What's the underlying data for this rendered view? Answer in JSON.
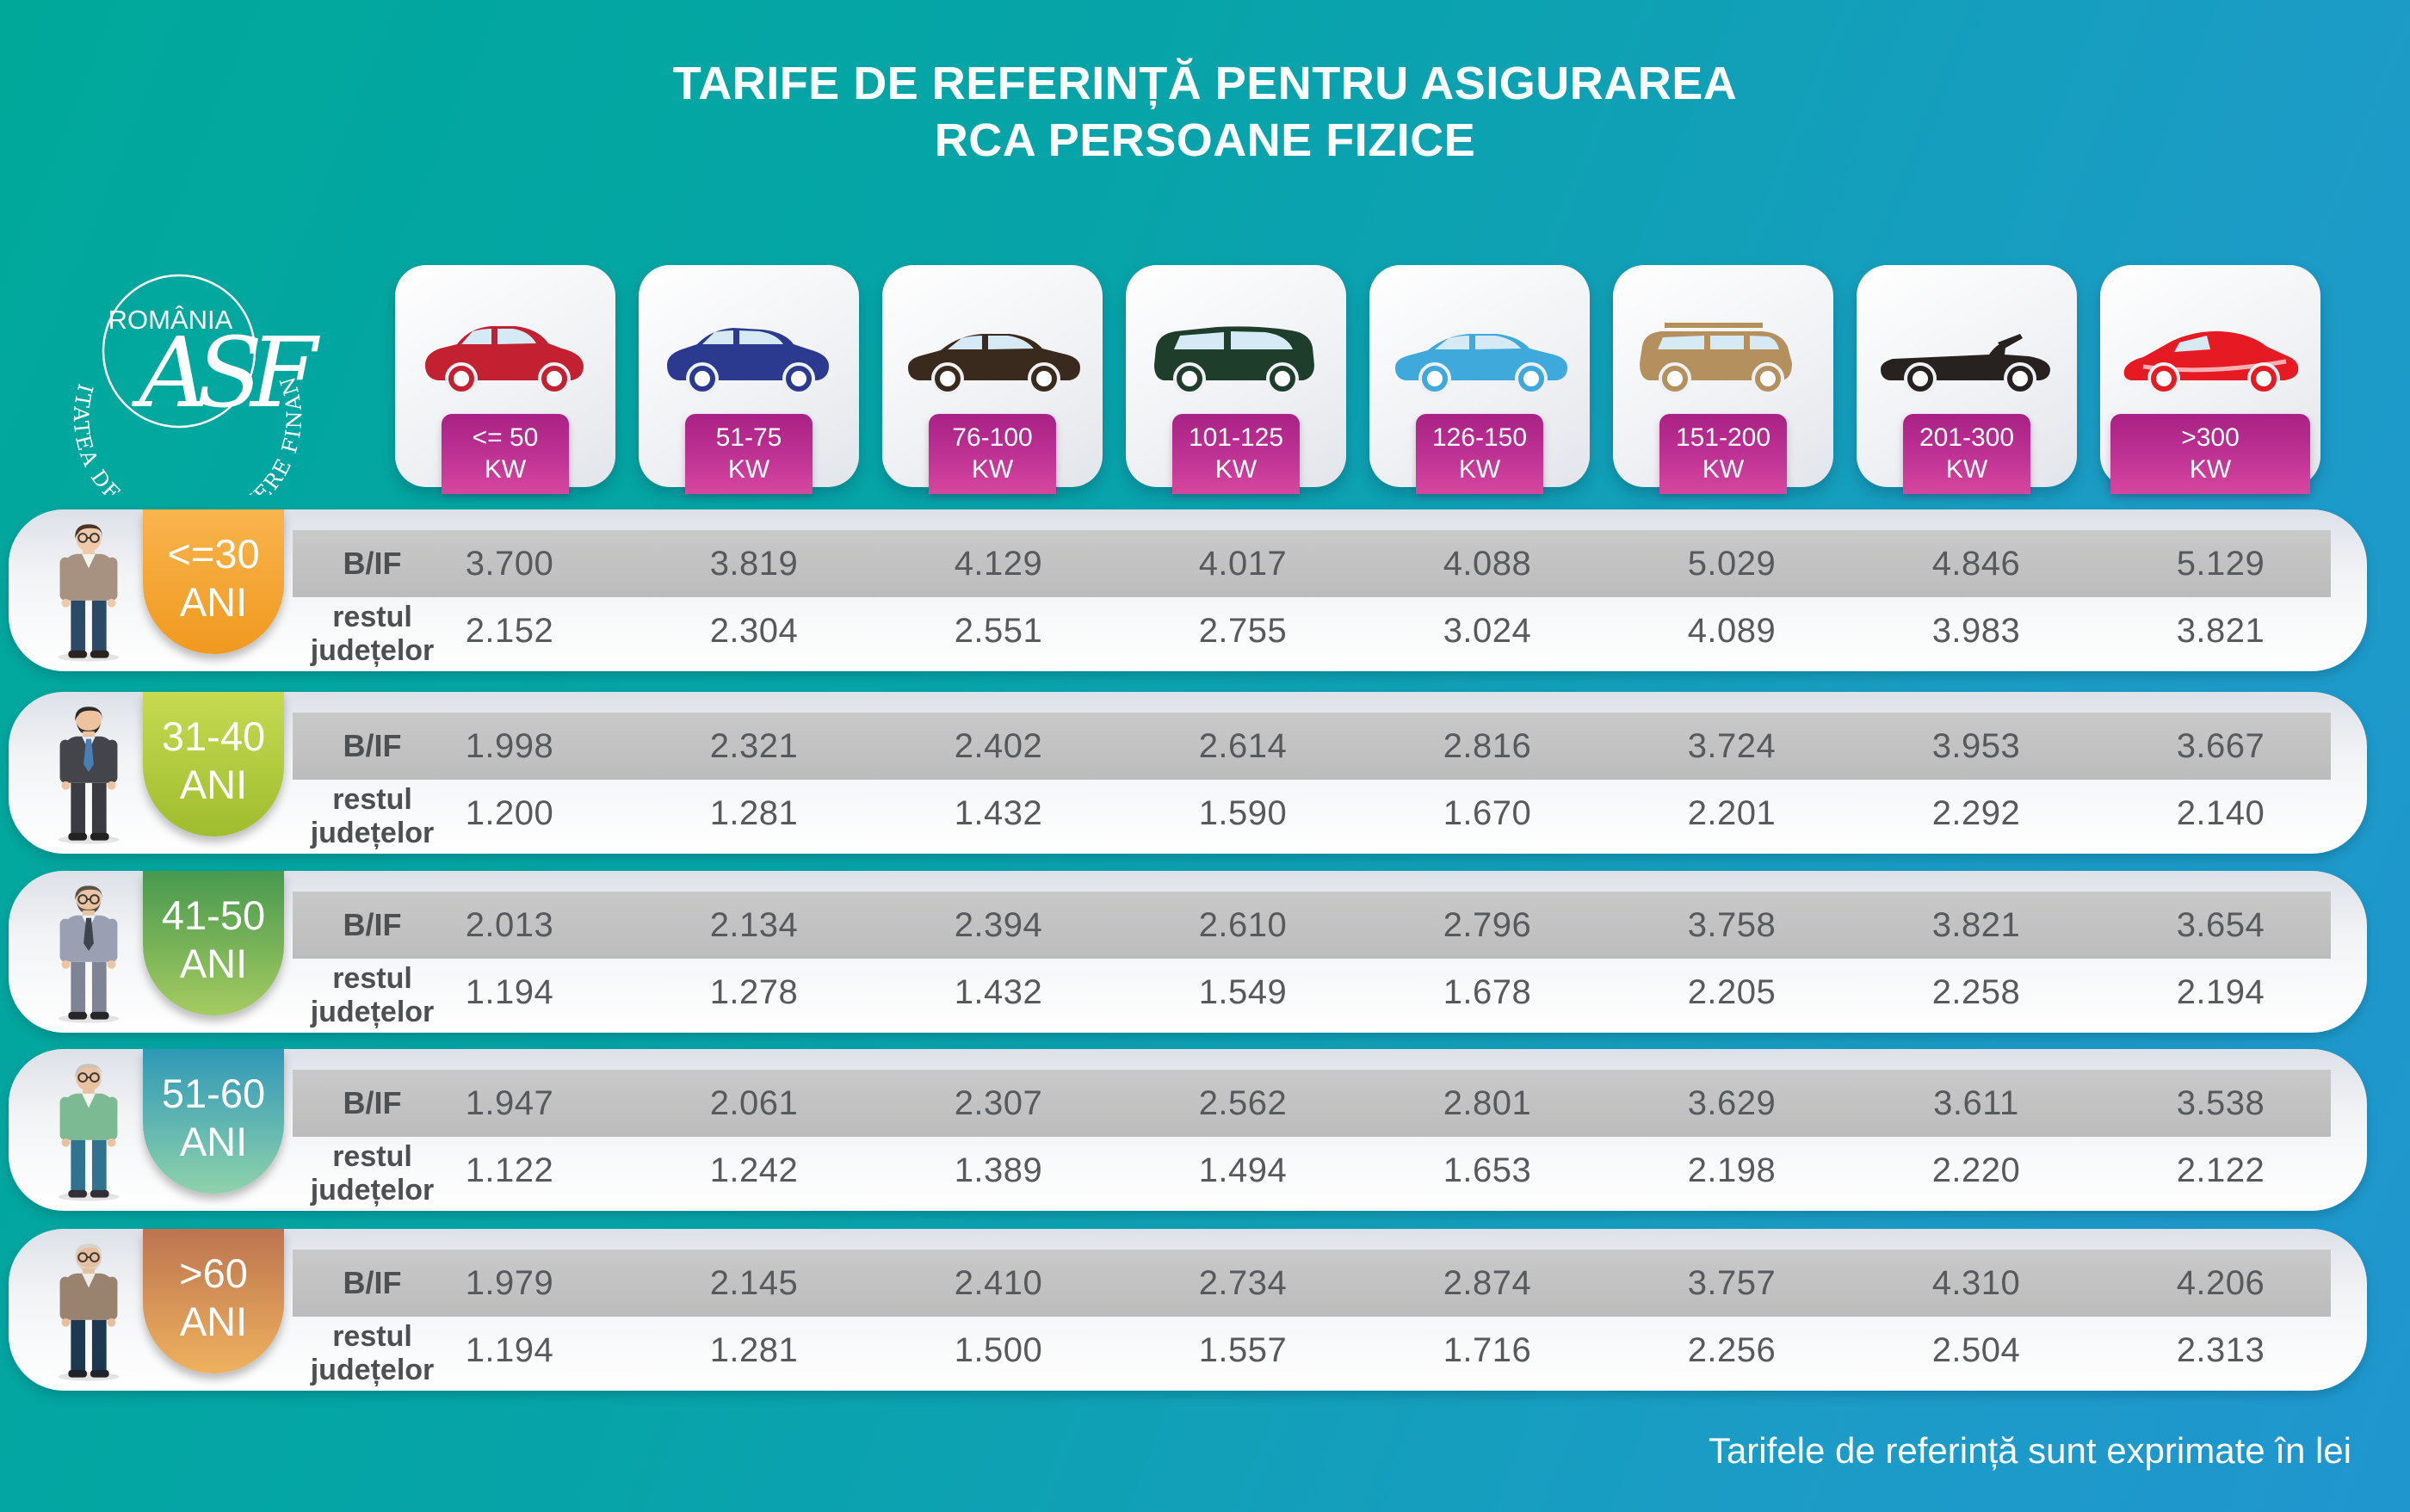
{
  "title": {
    "line1": "TARIFE DE REFERINȚĂ PENTRU ASIGURAREA",
    "line2": "RCA PERSOANE FIZICE"
  },
  "logo": {
    "country": "ROMÂNIA",
    "monogram": "ASF",
    "ring_text": "AUTORITATEA DE SUPRAVEGHERE FINANCIARĂ"
  },
  "labels": {
    "bif": "B/IF",
    "rest_line1": "restul",
    "rest_line2": "județelor",
    "ani": "ANI"
  },
  "columns": [
    {
      "power": "<= 50",
      "unit": "KW",
      "car": "hatchback",
      "color": "#c32032"
    },
    {
      "power": "51-75",
      "unit": "KW",
      "car": "suv_small",
      "color": "#2b3a8f"
    },
    {
      "power": "76-100",
      "unit": "KW",
      "car": "sedan",
      "color": "#3a2a1e"
    },
    {
      "power": "101-125",
      "unit": "KW",
      "car": "minivan",
      "color": "#1e3d2b"
    },
    {
      "power": "126-150",
      "unit": "KW",
      "car": "sedan",
      "color": "#3fa9dc"
    },
    {
      "power": "151-200",
      "unit": "KW",
      "car": "suv_large",
      "color": "#b3905e"
    },
    {
      "power": "201-300",
      "unit": "KW",
      "car": "convertible",
      "color": "#27221f"
    },
    {
      "power": ">300",
      "unit": "KW",
      "car": "sports",
      "color": "#e51a23"
    }
  ],
  "age_ui": [
    {
      "age": "<=30",
      "badge": {
        "from": "#f9b44d",
        "to": "#f0991f"
      },
      "person": {
        "skin": "#f0c9a8",
        "hair": "#4a3527",
        "coat": "#a79282",
        "shirt": "#f5f2ea",
        "tie": null,
        "pants": "#2c4a68",
        "shoes": "#2a2320",
        "beard": false,
        "glasses": true
      }
    },
    {
      "age": "31-40",
      "badge": {
        "from": "#c6da52",
        "to": "#9fbd2e"
      },
      "person": {
        "skin": "#eec3a0",
        "hair": "#2f2a28",
        "coat": "#43454a",
        "shirt": "#e8eef4",
        "tie": "#4a7fb5",
        "pants": "#3a3c42",
        "shoes": "#222222",
        "beard": true,
        "glasses": false
      }
    },
    {
      "age": "41-50",
      "badge": {
        "from": "#47994f",
        "to": "#a6cb61"
      },
      "person": {
        "skin": "#ecc4a2",
        "hair": "#5a5248",
        "coat": "#9aa0b2",
        "shirt": "#f2f4f7",
        "tie": "#3e4450",
        "pants": "#7e8496",
        "shoes": "#26262a",
        "beard": true,
        "glasses": true
      }
    },
    {
      "age": "51-60",
      "badge": {
        "from": "#2f98b7",
        "to": "#8fd2ab"
      },
      "person": {
        "skin": "#eac2a0",
        "hair": "#c9c4ba",
        "coat": "#7cba93",
        "shirt": "#f4f4f1",
        "tie": null,
        "pants": "#2f7390",
        "shoes": "#323036",
        "beard": false,
        "glasses": true
      }
    },
    {
      "age": ">60",
      "badge": {
        "from": "#bd7450",
        "to": "#eeb25e"
      },
      "person": {
        "skin": "#e8bf9e",
        "hair": "#d8d4cc",
        "coat": "#99836f",
        "shirt": "#efece6",
        "tie": null,
        "pants": "#1d3950",
        "shoes": "#20242a",
        "beard": true,
        "glasses": true
      }
    }
  ],
  "chart_data": {
    "type": "table",
    "title": "TARIFE DE REFERINȚĂ PENTRU ASIGURAREA RCA PERSOANE FIZICE",
    "unit_note": "Tarifele de referință sunt exprimate în lei",
    "power_categories": [
      "<= 50 KW",
      "51-75 KW",
      "76-100 KW",
      "101-125 KW",
      "126-150 KW",
      "151-200 KW",
      "201-300 KW",
      ">300 KW"
    ],
    "age_groups": [
      "<=30 ANI",
      "31-40 ANI",
      "41-50 ANI",
      "51-60 ANI",
      ">60 ANI"
    ],
    "region_rows": [
      "B/IF",
      "restul județelor"
    ],
    "bif": [
      [
        "3.700",
        "3.819",
        "4.129",
        "4.017",
        "4.088",
        "5.029",
        "4.846",
        "5.129"
      ],
      [
        "1.998",
        "2.321",
        "2.402",
        "2.614",
        "2.816",
        "3.724",
        "3.953",
        "3.667"
      ],
      [
        "2.013",
        "2.134",
        "2.394",
        "2.610",
        "2.796",
        "3.758",
        "3.821",
        "3.654"
      ],
      [
        "1.947",
        "2.061",
        "2.307",
        "2.562",
        "2.801",
        "3.629",
        "3.611",
        "3.538"
      ],
      [
        "1.979",
        "2.145",
        "2.410",
        "2.734",
        "2.874",
        "3.757",
        "4.310",
        "4.206"
      ]
    ],
    "rest": [
      [
        "2.152",
        "2.304",
        "2.551",
        "2.755",
        "3.024",
        "4.089",
        "3.983",
        "3.821"
      ],
      [
        "1.200",
        "1.281",
        "1.432",
        "1.590",
        "1.670",
        "2.201",
        "2.292",
        "2.140"
      ],
      [
        "1.194",
        "1.278",
        "1.432",
        "1.549",
        "1.678",
        "2.205",
        "2.258",
        "2.194"
      ],
      [
        "1.122",
        "1.242",
        "1.389",
        "1.494",
        "1.653",
        "2.198",
        "2.220",
        "2.122"
      ],
      [
        "1.194",
        "1.281",
        "1.500",
        "1.557",
        "1.716",
        "2.256",
        "2.504",
        "2.313"
      ]
    ]
  },
  "footer": "Tarifele de referință sunt exprimate în lei"
}
